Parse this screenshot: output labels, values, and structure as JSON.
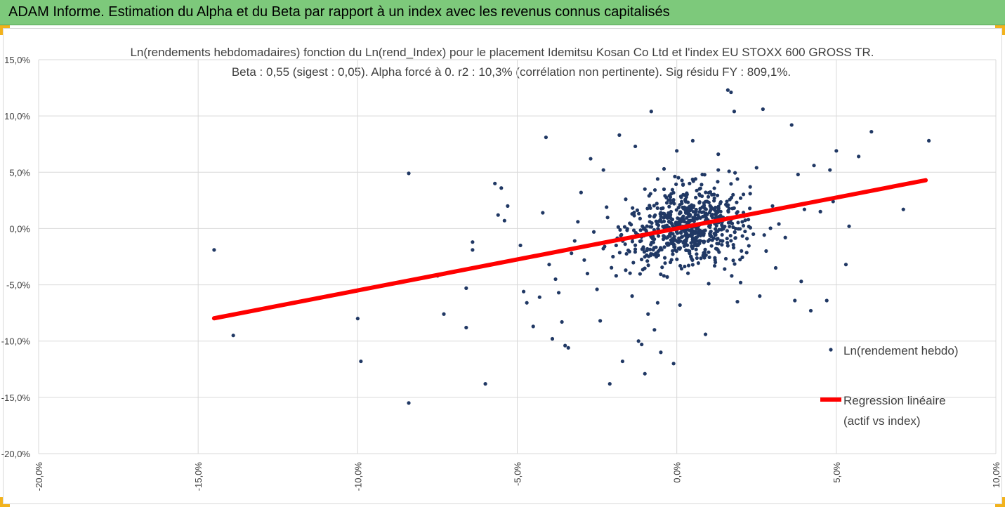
{
  "banner": {
    "title": "ADAM Informe. Estimation du Alpha et du Beta par rapport à un index avec les revenus connus capitalisés",
    "color": "#7dc97b"
  },
  "chart_data": {
    "type": "scatter",
    "title": "Ln(rendements hebdomadaires) fonction du Ln(rend_Index) pour le placement Idemitsu Kosan Co Ltd et l'index EU STOXX 600 GROSS TR.",
    "subtitle": "Beta : 0,55 (sigest : 0,05).  Alpha forcé à 0. r2 : 10,3% (corrélation non pertinente). Sig résidu FY : 809,1%.",
    "xlim": [
      -20,
      10
    ],
    "ylim": [
      -20,
      15
    ],
    "x_ticks": [
      "-20,0%",
      "-15,0%",
      "-10,0%",
      "-5,0%",
      "0,0%",
      "5,0%",
      "10,0%"
    ],
    "y_ticks": [
      "15,0%",
      "10,0%",
      "5,0%",
      "0,0%",
      "-5,0%",
      "-10,0%",
      "-15,0%",
      "-20,0%"
    ],
    "grid": true,
    "legend_position": "right",
    "series": [
      {
        "name": "Ln(rendement hebdo)",
        "kind": "scatter",
        "color": "#203864",
        "points": [
          [
            -14.5,
            -1.9
          ],
          [
            -13.9,
            -9.5
          ],
          [
            -10.0,
            -8.0
          ],
          [
            -9.9,
            -11.8
          ],
          [
            -8.4,
            4.9
          ],
          [
            -8.4,
            -15.5
          ],
          [
            -7.5,
            -4.2
          ],
          [
            -7.3,
            -7.6
          ],
          [
            -6.6,
            -5.3
          ],
          [
            -6.6,
            -8.8
          ],
          [
            -6.4,
            -1.2
          ],
          [
            -6.4,
            -1.9
          ],
          [
            -6.0,
            -13.8
          ],
          [
            -5.7,
            4.0
          ],
          [
            -5.6,
            1.2
          ],
          [
            -5.5,
            3.6
          ],
          [
            -5.4,
            0.7
          ],
          [
            -5.3,
            2.0
          ],
          [
            -4.9,
            -1.5
          ],
          [
            -4.8,
            -5.6
          ],
          [
            -4.7,
            -6.6
          ],
          [
            -4.5,
            -8.7
          ],
          [
            -4.3,
            -6.1
          ],
          [
            -4.1,
            8.1
          ],
          [
            -4.0,
            -3.2
          ],
          [
            -3.9,
            -9.8
          ],
          [
            -3.8,
            -4.5
          ],
          [
            -3.7,
            -5.7
          ],
          [
            -3.6,
            -8.3
          ],
          [
            -3.5,
            -10.4
          ],
          [
            -3.4,
            -10.6
          ],
          [
            -3.3,
            -2.2
          ],
          [
            -3.2,
            -1.1
          ],
          [
            -3.0,
            3.2
          ],
          [
            -2.8,
            -4.0
          ],
          [
            -2.7,
            6.2
          ],
          [
            -2.6,
            -0.3
          ],
          [
            -2.5,
            -5.4
          ],
          [
            -2.4,
            -8.2
          ],
          [
            -2.3,
            5.2
          ],
          [
            -2.1,
            -13.8
          ],
          [
            -2.0,
            -2.5
          ],
          [
            -1.9,
            -4.2
          ],
          [
            -1.8,
            8.3
          ],
          [
            -1.7,
            -11.8
          ],
          [
            -1.6,
            -3.7
          ],
          [
            -1.4,
            -6.0
          ],
          [
            -1.3,
            7.3
          ],
          [
            -1.2,
            -10.0
          ],
          [
            -1.1,
            -10.3
          ],
          [
            -1.0,
            -12.9
          ],
          [
            -0.9,
            -7.6
          ],
          [
            -0.8,
            10.4
          ],
          [
            -0.7,
            -9.0
          ],
          [
            -0.6,
            -6.6
          ],
          [
            -0.5,
            -11.0
          ],
          [
            -0.4,
            5.3
          ],
          [
            -0.3,
            -4.3
          ],
          [
            -0.2,
            -3.0
          ],
          [
            -0.1,
            -12.0
          ],
          [
            0.0,
            6.9
          ],
          [
            0.1,
            -6.8
          ],
          [
            0.2,
            3.0
          ],
          [
            0.3,
            1.6
          ],
          [
            0.4,
            -2.2
          ],
          [
            0.5,
            7.8
          ],
          [
            0.6,
            -1.0
          ],
          [
            0.7,
            0.3
          ],
          [
            0.8,
            1.9
          ],
          [
            0.9,
            -9.4
          ],
          [
            1.0,
            -4.9
          ],
          [
            1.1,
            3.0
          ],
          [
            1.2,
            -2.8
          ],
          [
            1.3,
            6.6
          ],
          [
            1.4,
            -0.1
          ],
          [
            1.5,
            -3.6
          ],
          [
            1.6,
            12.3
          ],
          [
            1.7,
            12.1
          ],
          [
            1.8,
            10.4
          ],
          [
            1.9,
            -6.5
          ],
          [
            2.0,
            -4.8
          ],
          [
            2.1,
            1.1
          ],
          [
            2.2,
            -0.9
          ],
          [
            2.3,
            3.1
          ],
          [
            2.4,
            -0.5
          ],
          [
            2.5,
            5.4
          ],
          [
            2.6,
            -6.0
          ],
          [
            2.7,
            10.6
          ],
          [
            2.8,
            -2.0
          ],
          [
            3.0,
            2.0
          ],
          [
            3.1,
            -3.5
          ],
          [
            3.2,
            0.4
          ],
          [
            3.4,
            -0.8
          ],
          [
            3.6,
            9.2
          ],
          [
            3.7,
            -6.4
          ],
          [
            3.8,
            4.8
          ],
          [
            3.9,
            -4.7
          ],
          [
            4.0,
            1.7
          ],
          [
            4.2,
            -7.3
          ],
          [
            4.3,
            5.6
          ],
          [
            4.5,
            1.5
          ],
          [
            4.7,
            -6.4
          ],
          [
            4.8,
            5.2
          ],
          [
            4.9,
            2.4
          ],
          [
            5.0,
            6.9
          ],
          [
            5.3,
            -3.2
          ],
          [
            5.4,
            0.2
          ],
          [
            5.7,
            6.4
          ],
          [
            6.1,
            8.6
          ],
          [
            7.1,
            1.7
          ],
          [
            7.9,
            7.8
          ],
          [
            -4.2,
            1.4
          ],
          [
            -3.1,
            0.6
          ],
          [
            -2.2,
            1.9
          ],
          [
            -1.6,
            2.6
          ],
          [
            -1.0,
            3.5
          ],
          [
            -0.6,
            4.4
          ],
          [
            0.4,
            4.0
          ],
          [
            0.8,
            4.8
          ],
          [
            1.3,
            5.2
          ],
          [
            1.9,
            4.4
          ],
          [
            2.3,
            3.7
          ],
          [
            -2.9,
            -2.8
          ],
          [
            -1.9,
            -1.5
          ],
          [
            -0.9,
            -0.5
          ],
          [
            0.6,
            -0.8
          ],
          [
            1.4,
            1.0
          ],
          [
            2.0,
            2.7
          ],
          [
            -1.4,
            1.3
          ]
        ]
      },
      {
        "name": "Regression linéaire (actif vs index)",
        "name_lines": [
          "Regression linéaire",
          "(actif vs index)"
        ],
        "kind": "line",
        "color": "#ff0000",
        "slope": 0.55,
        "x_range": [
          -14.5,
          7.8
        ]
      }
    ]
  }
}
